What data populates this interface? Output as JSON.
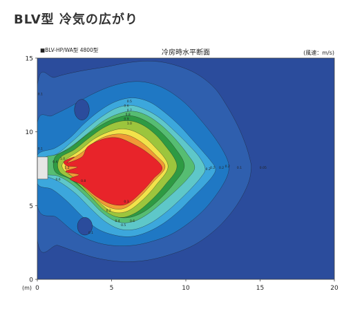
{
  "page": {
    "heading": "BLV型 冷気の広がり"
  },
  "chart_data": {
    "type": "heatmap",
    "title": "冷房時水平断面",
    "subtitle": "■BLV-HP/WA型 4800型",
    "unit_label": "(風速：m/s)",
    "x_unit_label": "(m)",
    "xlim": [
      0,
      20
    ],
    "ylim": [
      0,
      15
    ],
    "x_ticks": [
      "0",
      "5",
      "10",
      "15",
      "20"
    ],
    "y_ticks": [
      "0",
      "5",
      "10",
      "15"
    ],
    "series": [
      {
        "name": "0.05",
        "color": "#2f5fae",
        "x": [
          0,
          1.2,
          2.8,
          4.6,
          6.2,
          7.6,
          9.0,
          10.6,
          11.9,
          12.8,
          13.5,
          14.0,
          14.3,
          14.4,
          14.2,
          13.6,
          12.8,
          11.8,
          10.5,
          9.0,
          7.4,
          5.8,
          4.2,
          2.8,
          1.4,
          0
        ],
        "y": [
          13.1,
          13.7,
          14.1,
          14.4,
          14.7,
          14.8,
          14.6,
          14.0,
          13.0,
          11.7,
          10.4,
          9.2,
          8.2,
          7.5,
          6.5,
          5.3,
          4.2,
          3.2,
          2.3,
          1.7,
          1.3,
          1.2,
          1.4,
          1.8,
          2.3,
          2.7
        ]
      },
      {
        "name": "0.1",
        "color": "#1f78c4",
        "x": [
          0,
          1.0,
          2.2,
          3.6,
          5.0,
          6.4,
          7.6,
          8.8,
          10.0,
          11.0,
          11.8,
          12.4,
          12.8,
          12.9,
          12.7,
          12.1,
          11.3,
          10.3,
          9.1,
          7.8,
          6.4,
          5.0,
          3.7,
          2.5,
          1.3,
          0
        ],
        "y": [
          10.6,
          11.1,
          11.7,
          12.5,
          13.1,
          13.4,
          13.3,
          12.8,
          11.9,
          10.8,
          9.8,
          8.9,
          8.1,
          7.5,
          6.8,
          5.8,
          4.8,
          3.9,
          3.1,
          2.6,
          2.3,
          2.3,
          2.6,
          3.2,
          4.2,
          5.0
        ]
      },
      {
        "name": "0.2",
        "color": "#3ca7dc",
        "x": [
          0,
          1.2,
          2.2,
          3.2,
          4.3,
          5.4,
          6.5,
          7.6,
          8.6,
          9.6,
          10.5,
          11.2,
          11.7,
          12.0,
          11.8,
          11.2,
          10.4,
          9.5,
          8.5,
          7.4,
          6.3,
          5.2,
          4.1,
          3.1,
          2.0,
          1.0,
          0
        ],
        "y": [
          8.4,
          8.9,
          9.6,
          10.6,
          11.5,
          12.1,
          12.3,
          12.0,
          11.3,
          10.4,
          9.4,
          8.6,
          8.0,
          7.5,
          7.0,
          6.3,
          5.5,
          4.6,
          3.8,
          3.2,
          2.9,
          3.0,
          3.4,
          4.2,
          5.3,
          6.1,
          6.5
        ]
      },
      {
        "name": "0.3",
        "color": "#5ec7c9",
        "x": [
          0,
          1.3,
          2.3,
          3.3,
          4.3,
          5.3,
          6.3,
          7.3,
          8.3,
          9.3,
          10.2,
          10.9,
          11.3,
          11.0,
          10.3,
          9.5,
          8.6,
          7.6,
          6.6,
          5.6,
          4.6,
          3.6,
          2.6,
          1.5,
          0.5,
          0
        ],
        "y": [
          8.0,
          8.5,
          9.3,
          10.2,
          11.0,
          11.6,
          11.8,
          11.5,
          10.9,
          10.0,
          9.1,
          8.3,
          7.5,
          6.9,
          6.1,
          5.3,
          4.5,
          3.8,
          3.4,
          3.4,
          3.9,
          4.8,
          5.8,
          6.6,
          7.0,
          7.0
        ]
      },
      {
        "name": "0.5",
        "color": "#56bd72",
        "x": [
          0.4,
          1.4,
          2.4,
          3.4,
          4.4,
          5.4,
          6.4,
          7.4,
          8.4,
          9.3,
          10.1,
          10.6,
          10.1,
          9.3,
          8.4,
          7.4,
          6.4,
          5.4,
          4.4,
          3.4,
          2.4,
          1.4,
          0.4
        ],
        "y": [
          8.2,
          8.5,
          9.1,
          9.9,
          10.7,
          11.2,
          11.4,
          11.1,
          10.4,
          9.5,
          8.5,
          7.6,
          6.8,
          6.0,
          5.2,
          4.4,
          3.9,
          3.9,
          4.5,
          5.5,
          6.4,
          7.0,
          7.2
        ]
      },
      {
        "name": "0.7",
        "color": "#2e9a43",
        "x": [
          1.2,
          2.2,
          3.2,
          4.2,
          5.2,
          6.2,
          7.2,
          8.2,
          9.2,
          9.9,
          9.2,
          8.2,
          7.2,
          6.2,
          5.2,
          4.2,
          3.2,
          2.2,
          1.2
        ],
        "y": [
          8.3,
          8.9,
          9.7,
          10.4,
          10.9,
          11.1,
          10.8,
          10.1,
          9.0,
          7.7,
          6.5,
          5.4,
          4.6,
          4.2,
          4.3,
          5.0,
          6.0,
          6.8,
          7.3
        ]
      },
      {
        "name": "0.9",
        "color": "#9cc53d",
        "x": [
          1.5,
          2.5,
          3.5,
          4.5,
          5.5,
          6.5,
          7.5,
          8.5,
          9.4,
          8.6,
          7.6,
          6.6,
          5.6,
          4.6,
          3.6,
          2.6,
          1.5
        ],
        "y": [
          8.2,
          8.8,
          9.6,
          10.3,
          10.7,
          10.7,
          10.2,
          9.2,
          7.7,
          6.4,
          5.3,
          4.5,
          4.2,
          4.6,
          5.6,
          6.6,
          7.3
        ]
      },
      {
        "name": "1.1",
        "color": "#f2e24a",
        "x": [
          1.8,
          2.8,
          3.8,
          4.8,
          5.8,
          6.8,
          7.8,
          8.8,
          8.0,
          7.0,
          6.0,
          5.0,
          4.0,
          3.0,
          1.8
        ],
        "y": [
          8.0,
          8.7,
          9.5,
          10.0,
          10.2,
          9.9,
          9.1,
          7.7,
          6.4,
          5.3,
          4.6,
          4.6,
          5.4,
          6.5,
          7.4
        ]
      },
      {
        "name": "1.3",
        "color": "#f09a36",
        "x": [
          2.0,
          3.0,
          4.0,
          5.0,
          6.0,
          7.0,
          8.0,
          8.6,
          7.8,
          6.8,
          5.8,
          4.8,
          3.8,
          2.8,
          2.0
        ],
        "y": [
          7.9,
          8.6,
          9.4,
          9.8,
          9.8,
          9.3,
          8.4,
          7.6,
          6.6,
          5.5,
          4.8,
          4.9,
          5.6,
          6.6,
          7.3
        ]
      },
      {
        "name": "1.5",
        "color": "#e8242a",
        "x": [
          1.8,
          2.5,
          2.0,
          3.0,
          3.4,
          4.4,
          5.4,
          6.4,
          7.4,
          8.4,
          7.8,
          7.0,
          6.0,
          5.0,
          4.0,
          3.0,
          2.2,
          2.8,
          1.9,
          2.7,
          2.0
        ],
        "y": [
          8.0,
          8.3,
          7.9,
          8.3,
          9.0,
          9.5,
          9.6,
          9.2,
          8.6,
          7.6,
          6.8,
          5.9,
          5.1,
          5.1,
          5.6,
          6.4,
          6.8,
          7.1,
          7.3,
          7.6,
          7.7
        ]
      }
    ],
    "labels": [
      {
        "text": "0.05",
        "x": 15.2,
        "y": 7.5
      },
      {
        "text": "0.1",
        "x": 13.6,
        "y": 7.5
      },
      {
        "text": "0.2",
        "x": 12.4,
        "y": 7.5
      },
      {
        "text": "0.2",
        "x": 12.8,
        "y": 7.6
      },
      {
        "text": "0.2",
        "x": 11.8,
        "y": 7.5
      },
      {
        "text": "0.2",
        "x": 11.5,
        "y": 7.4
      },
      {
        "text": "0.5",
        "x": 6.2,
        "y": 12.0
      },
      {
        "text": "0.6",
        "x": 6.0,
        "y": 11.7
      },
      {
        "text": "0.7",
        "x": 6.2,
        "y": 11.4
      },
      {
        "text": "0.8",
        "x": 6.1,
        "y": 11.1
      },
      {
        "text": "0.9",
        "x": 6.0,
        "y": 10.8
      },
      {
        "text": "1.0",
        "x": 6.2,
        "y": 10.5
      },
      {
        "text": "0.1",
        "x": 0.2,
        "y": 12.5
      },
      {
        "text": "0.1",
        "x": 3.6,
        "y": 3.1
      },
      {
        "text": "0.2",
        "x": 4.8,
        "y": 4.6
      },
      {
        "text": "0.3",
        "x": 6.0,
        "y": 5.2
      },
      {
        "text": "0.4",
        "x": 5.4,
        "y": 3.9
      },
      {
        "text": "0.5",
        "x": 5.8,
        "y": 3.6
      },
      {
        "text": "0.6",
        "x": 6.4,
        "y": 3.9
      },
      {
        "text": "0.8",
        "x": 3.1,
        "y": 6.6
      },
      {
        "text": "0.6",
        "x": 1.4,
        "y": 6.7
      },
      {
        "text": "1.0",
        "x": 1.7,
        "y": 8.1
      },
      {
        "text": "1.2",
        "x": 2.0,
        "y": 7.5
      },
      {
        "text": "0.4",
        "x": 1.2,
        "y": 7.9
      },
      {
        "text": "0.1",
        "x": 0.2,
        "y": 8.8
      }
    ],
    "dark_spots": [
      {
        "x": 3.0,
        "y": 11.5,
        "rx": 0.5,
        "ry": 0.7
      },
      {
        "x": 3.2,
        "y": 3.6,
        "rx": 0.5,
        "ry": 0.6
      }
    ],
    "outlet": {
      "x0": 0,
      "x1": 0.7,
      "y0": 6.8,
      "y1": 8.3
    },
    "colors": {
      "background": "#2b4c9c",
      "frame": "#444444",
      "outlet": "#e6e6e6"
    }
  }
}
